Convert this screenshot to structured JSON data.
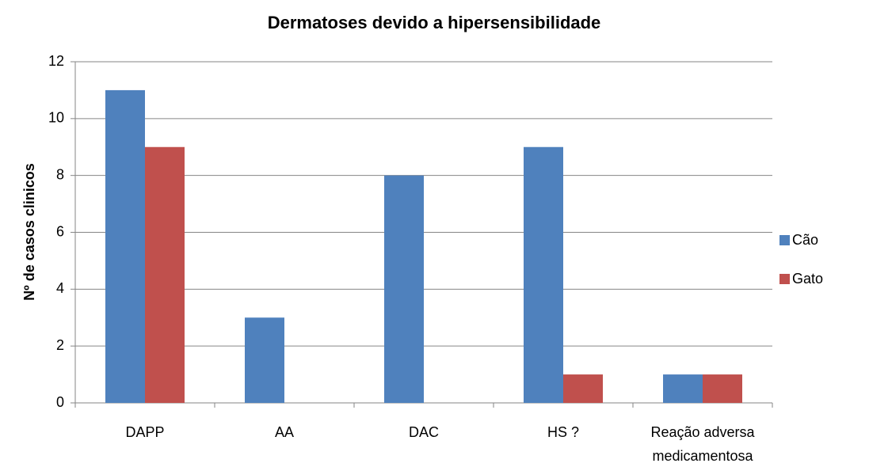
{
  "chart_data": {
    "type": "bar",
    "title": "Dermatoses devido a hipersensibilidade",
    "ylabel": "Nº de casos clinicos",
    "categories": [
      "DAPP",
      "AA",
      "DAC",
      "HS ?",
      "Reação adversa medicamentosa"
    ],
    "series": [
      {
        "name": "Cão",
        "color": "#4f81bd",
        "values": [
          11,
          3,
          8,
          9,
          1
        ]
      },
      {
        "name": "Gato",
        "color": "#c0504d",
        "values": [
          9,
          0,
          0,
          1,
          1
        ]
      }
    ],
    "ylim": [
      0,
      12
    ],
    "yticks": [
      0,
      2,
      4,
      6,
      8,
      10,
      12
    ],
    "grid": true,
    "legend": "right"
  }
}
